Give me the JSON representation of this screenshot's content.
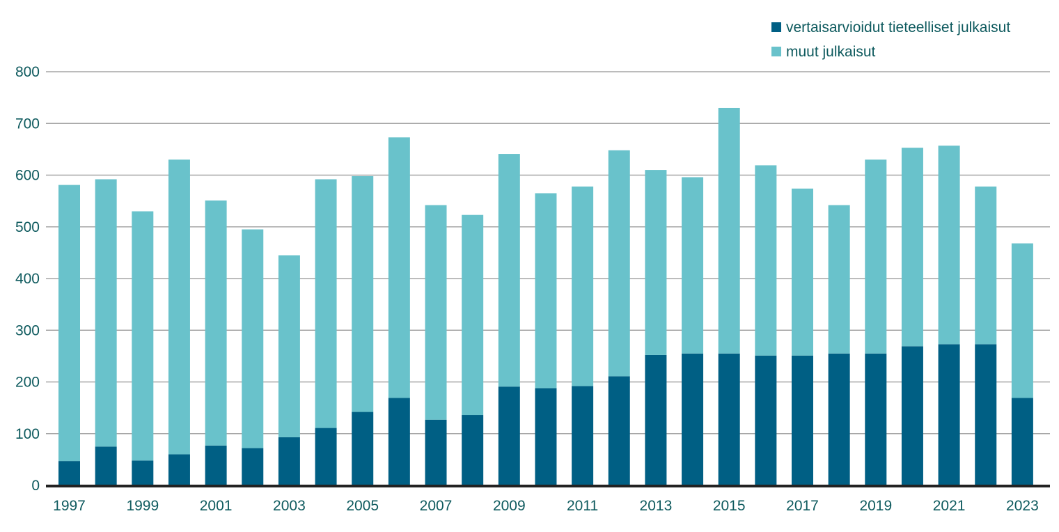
{
  "chart_data": {
    "type": "bar",
    "stacked": true,
    "categories": [
      "1997",
      "1998",
      "1999",
      "2000",
      "2001",
      "2002",
      "2003",
      "2004",
      "2005",
      "2006",
      "2007",
      "2008",
      "2009",
      "2010",
      "2011",
      "2012",
      "2013",
      "2014",
      "2015",
      "2016",
      "2017",
      "2018",
      "2019",
      "2020",
      "2021",
      "2022",
      "2023"
    ],
    "x_tick_labels": [
      "1997",
      "1999",
      "2001",
      "2003",
      "2005",
      "2007",
      "2009",
      "2011",
      "2013",
      "2015",
      "2017",
      "2019",
      "2021",
      "2023"
    ],
    "series": [
      {
        "name": "vertaisarvioidut tieteelliset julkaisut",
        "color": "#005f84",
        "values": [
          47,
          75,
          48,
          60,
          77,
          72,
          93,
          111,
          142,
          169,
          127,
          136,
          191,
          188,
          192,
          211,
          252,
          255,
          255,
          251,
          251,
          255,
          255,
          269,
          273,
          273,
          169
        ]
      },
      {
        "name": "muut julkaisut",
        "color": "#69c2cb",
        "values": [
          534,
          517,
          482,
          570,
          474,
          423,
          352,
          481,
          456,
          504,
          415,
          387,
          450,
          377,
          386,
          437,
          358,
          341,
          475,
          368,
          323,
          287,
          375,
          384,
          384,
          305,
          299
        ]
      }
    ],
    "title": "",
    "xlabel": "",
    "ylabel": "",
    "ylim": [
      0,
      800
    ],
    "yticks": [
      0,
      100,
      200,
      300,
      400,
      500,
      600,
      700,
      800
    ],
    "grid": true,
    "legend_position": "top-right"
  }
}
